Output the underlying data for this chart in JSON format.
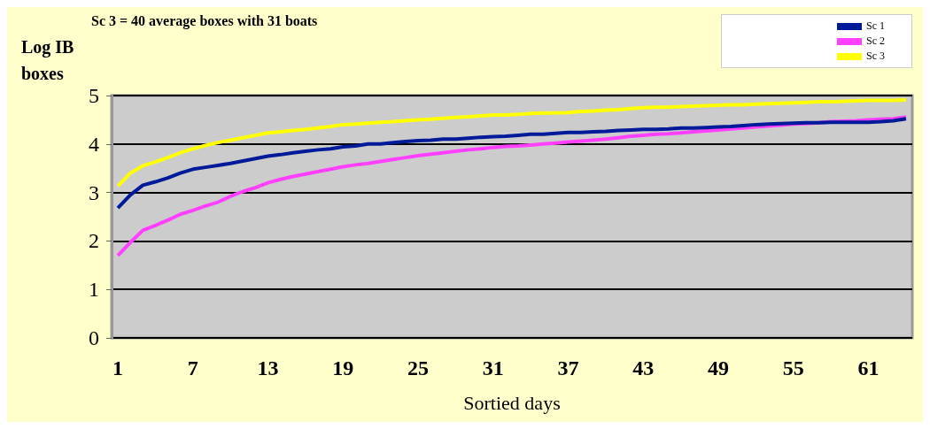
{
  "chart_data": {
    "type": "line",
    "title": "Sc 3 = 40 average boxes with 31 boats",
    "xlabel": "Sortied days",
    "ylabel": "Log IB boxes",
    "categories": [
      "1",
      null,
      null,
      null,
      null,
      null,
      "7",
      null,
      null,
      null,
      null,
      null,
      "13",
      null,
      null,
      null,
      null,
      null,
      "19",
      null,
      null,
      null,
      null,
      null,
      "25",
      null,
      null,
      null,
      null,
      null,
      "31",
      null,
      null,
      null,
      null,
      null,
      "37",
      null,
      null,
      null,
      null,
      null,
      "43",
      null,
      null,
      null,
      null,
      null,
      "49",
      null,
      null,
      null,
      null,
      null,
      "55",
      null,
      null,
      null,
      null,
      null,
      "61",
      null,
      null,
      null
    ],
    "series": [
      {
        "name": "Sc 1",
        "color": "#001a99",
        "values": [
          2.68,
          2.95,
          3.15,
          3.22,
          3.3,
          3.4,
          3.48,
          3.52,
          3.56,
          3.6,
          3.65,
          3.7,
          3.75,
          3.78,
          3.82,
          3.85,
          3.88,
          3.9,
          3.94,
          3.96,
          4,
          4,
          4.03,
          4.05,
          4.07,
          4.08,
          4.1,
          4.1,
          4.12,
          4.14,
          4.15,
          4.16,
          4.18,
          4.2,
          4.2,
          4.22,
          4.24,
          4.24,
          4.25,
          4.26,
          4.28,
          4.29,
          4.3,
          4.3,
          4.31,
          4.33,
          4.33,
          4.34,
          4.35,
          4.36,
          4.38,
          4.4,
          4.41,
          4.42,
          4.43,
          4.44,
          4.44,
          4.45,
          4.45,
          4.45,
          4.45,
          4.46,
          4.48,
          4.52
        ]
      },
      {
        "name": "Sc 2",
        "color": "#ff40ff",
        "values": [
          1.7,
          1.97,
          2.22,
          2.32,
          2.43,
          2.55,
          2.63,
          2.72,
          2.8,
          2.92,
          3.02,
          3.1,
          3.2,
          3.27,
          3.33,
          3.38,
          3.43,
          3.48,
          3.53,
          3.57,
          3.6,
          3.64,
          3.68,
          3.72,
          3.76,
          3.79,
          3.82,
          3.85,
          3.88,
          3.9,
          3.93,
          3.95,
          3.96,
          3.98,
          4,
          4.02,
          4.04,
          4.06,
          4.08,
          4.1,
          4.13,
          4.16,
          4.18,
          4.2,
          4.21,
          4.23,
          4.25,
          4.27,
          4.29,
          4.31,
          4.33,
          4.35,
          4.37,
          4.39,
          4.41,
          4.42,
          4.44,
          4.46,
          4.47,
          4.48,
          4.5,
          4.51,
          4.52,
          4.56
        ]
      },
      {
        "name": "Sc 3",
        "color": "#ffff00",
        "values": [
          3.13,
          3.4,
          3.55,
          3.63,
          3.72,
          3.82,
          3.9,
          3.97,
          4.03,
          4.08,
          4.13,
          4.18,
          4.23,
          4.25,
          4.28,
          4.3,
          4.33,
          4.36,
          4.4,
          4.41,
          4.43,
          4.45,
          4.46,
          4.48,
          4.5,
          4.51,
          4.53,
          4.55,
          4.56,
          4.58,
          4.6,
          4.6,
          4.61,
          4.63,
          4.64,
          4.64,
          4.65,
          4.67,
          4.68,
          4.7,
          4.71,
          4.73,
          4.75,
          4.76,
          4.76,
          4.77,
          4.78,
          4.79,
          4.8,
          4.81,
          4.81,
          4.82,
          4.83,
          4.84,
          4.85,
          4.86,
          4.87,
          4.87,
          4.88,
          4.89,
          4.9,
          4.9,
          4.9,
          4.91
        ]
      }
    ],
    "ylim": [
      0,
      5
    ],
    "yticks": [
      0,
      1,
      2,
      3,
      4,
      5
    ],
    "grid": "y",
    "legend": "top right",
    "marker": "none",
    "line_style": "solid"
  }
}
